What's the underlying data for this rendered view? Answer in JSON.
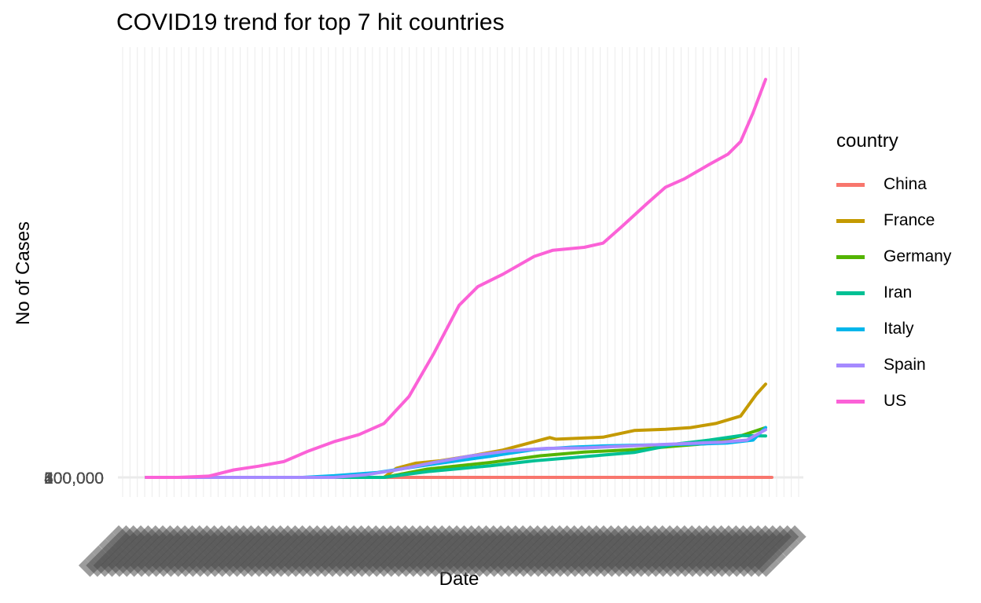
{
  "chart_data": {
    "type": "line",
    "title": "COVID19 trend for top 7 hit countries",
    "xlabel": "Date",
    "ylabel": "No of Cases",
    "legend_title": "country",
    "legend_position": "right",
    "grid": true,
    "y_tick_labels": [
      "0",
      "100,000",
      "200,000",
      "300,000",
      "400,000",
      "500,000",
      "600,000"
    ],
    "x_tick_label_count": 93,
    "series": [
      {
        "name": "China",
        "color": "#F8766D",
        "points": [
          [
            0,
            0
          ],
          [
            1,
            0
          ],
          [
            0.5,
            0
          ]
        ]
      },
      {
        "name": "France",
        "color": "#C49A00",
        "points": [
          [
            0,
            0
          ],
          [
            0.38,
            0
          ],
          [
            0.4,
            0.022
          ],
          [
            0.43,
            0.034
          ],
          [
            0.47,
            0.04
          ],
          [
            0.52,
            0.052
          ],
          [
            0.57,
            0.066
          ],
          [
            0.61,
            0.082
          ],
          [
            0.645,
            0.096
          ],
          [
            0.655,
            0.092
          ],
          [
            0.73,
            0.097
          ],
          [
            0.78,
            0.113
          ],
          [
            0.83,
            0.116
          ],
          [
            0.87,
            0.12
          ],
          [
            0.91,
            0.13
          ],
          [
            0.95,
            0.148
          ],
          [
            0.975,
            0.2
          ],
          [
            0.99,
            0.225
          ]
        ]
      },
      {
        "name": "Germany",
        "color": "#53B400",
        "points": [
          [
            0,
            0
          ],
          [
            0.38,
            0
          ],
          [
            0.45,
            0.02
          ],
          [
            0.55,
            0.036
          ],
          [
            0.63,
            0.052
          ],
          [
            0.7,
            0.061
          ],
          [
            0.78,
            0.067
          ],
          [
            0.85,
            0.076
          ],
          [
            0.9,
            0.082
          ],
          [
            0.95,
            0.1
          ],
          [
            0.99,
            0.12
          ]
        ]
      },
      {
        "name": "Iran",
        "color": "#00C094",
        "points": [
          [
            0,
            0
          ],
          [
            0.38,
            0
          ],
          [
            0.45,
            0.014
          ],
          [
            0.55,
            0.028
          ],
          [
            0.62,
            0.04
          ],
          [
            0.7,
            0.05
          ],
          [
            0.78,
            0.06
          ],
          [
            0.85,
            0.081
          ],
          [
            0.9,
            0.09
          ],
          [
            0.95,
            0.101
          ],
          [
            0.99,
            0.1
          ]
        ]
      },
      {
        "name": "Italy",
        "color": "#00B6EB",
        "points": [
          [
            0,
            0
          ],
          [
            0.25,
            0
          ],
          [
            0.3,
            0.004
          ],
          [
            0.37,
            0.012
          ],
          [
            0.45,
            0.03
          ],
          [
            0.55,
            0.051
          ],
          [
            0.62,
            0.067
          ],
          [
            0.68,
            0.073
          ],
          [
            0.73,
            0.076
          ],
          [
            0.8,
            0.078
          ],
          [
            0.87,
            0.08
          ],
          [
            0.93,
            0.083
          ],
          [
            0.97,
            0.09
          ],
          [
            0.99,
            0.12
          ]
        ]
      },
      {
        "name": "Spain",
        "color": "#A58AFF",
        "points": [
          [
            0,
            0
          ],
          [
            0.3,
            0
          ],
          [
            0.35,
            0.006
          ],
          [
            0.4,
            0.018
          ],
          [
            0.46,
            0.036
          ],
          [
            0.52,
            0.052
          ],
          [
            0.58,
            0.064
          ],
          [
            0.64,
            0.07
          ],
          [
            0.7,
            0.071
          ],
          [
            0.76,
            0.075
          ],
          [
            0.82,
            0.079
          ],
          [
            0.87,
            0.082
          ],
          [
            0.92,
            0.085
          ],
          [
            0.96,
            0.09
          ],
          [
            0.99,
            0.115
          ]
        ]
      },
      {
        "name": "US",
        "color": "#FB61D7",
        "points": [
          [
            0,
            0
          ],
          [
            0.05,
            0.0
          ],
          [
            0.1,
            0.003
          ],
          [
            0.14,
            0.018
          ],
          [
            0.18,
            0.027
          ],
          [
            0.22,
            0.038
          ],
          [
            0.26,
            0.064
          ],
          [
            0.3,
            0.086
          ],
          [
            0.34,
            0.103
          ],
          [
            0.38,
            0.13
          ],
          [
            0.42,
            0.195
          ],
          [
            0.46,
            0.3
          ],
          [
            0.5,
            0.415
          ],
          [
            0.53,
            0.46
          ],
          [
            0.57,
            0.49
          ],
          [
            0.62,
            0.533
          ],
          [
            0.65,
            0.548
          ],
          [
            0.7,
            0.555
          ],
          [
            0.73,
            0.565
          ],
          [
            0.76,
            0.605
          ],
          [
            0.8,
            0.66
          ],
          [
            0.83,
            0.7
          ],
          [
            0.86,
            0.72
          ],
          [
            0.9,
            0.755
          ],
          [
            0.93,
            0.78
          ],
          [
            0.95,
            0.81
          ],
          [
            0.97,
            0.88
          ],
          [
            0.99,
            0.96
          ]
        ]
      }
    ]
  }
}
